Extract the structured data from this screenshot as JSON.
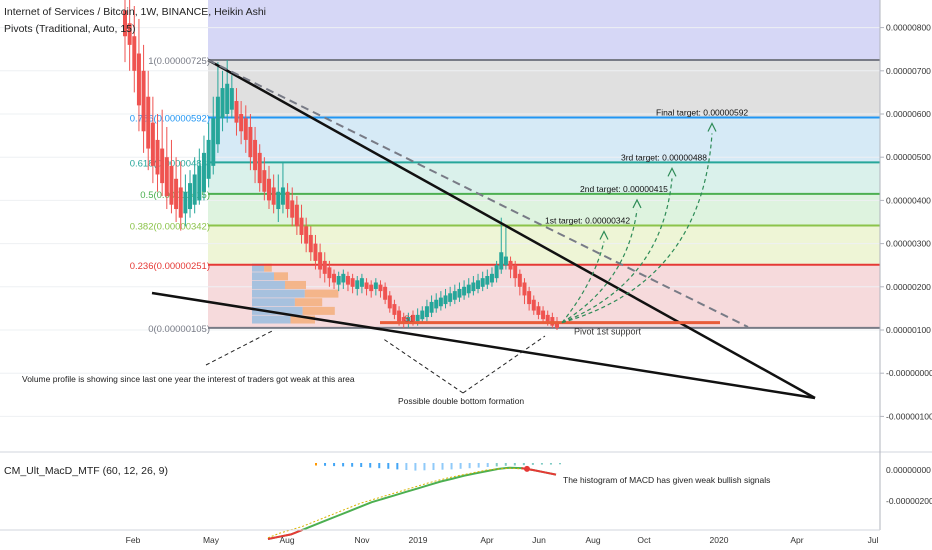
{
  "header": {
    "title": "Internet of Services / Bitcoin, 1W, BINANCE, Heikin Ashi",
    "pivots": "Pivots (Traditional, Auto, 15)",
    "macd": "CM_Ult_MacD_MTF (60, 12, 26, 9)"
  },
  "chart_data": {
    "type": "candlestick",
    "price_axis": {
      "ticks": [
        "0.00000800",
        "0.00000700",
        "0.00000600",
        "0.00000500",
        "0.00000400",
        "0.00000300",
        "0.00000200",
        "0.00000100",
        "-0.00000000",
        "-0.00000100"
      ],
      "range": [
        -1.5e-06,
        8.5e-06
      ]
    },
    "macd_axis": {
      "ticks": [
        "0.00000000",
        "-0.00000200"
      ]
    },
    "time_axis": {
      "ticks": [
        "Feb",
        "May",
        "Aug",
        "Nov",
        "2019",
        "Apr",
        "Jun",
        "Aug",
        "Oct",
        "2020",
        "Apr",
        "Jul"
      ]
    },
    "fib_levels": [
      {
        "label": "1(0.00000725)",
        "value": 7.25e-06,
        "color": "#787b86"
      },
      {
        "label": "0.786(0.00000592)",
        "value": 5.92e-06,
        "color": "#2196f3"
      },
      {
        "label": "0.618(0.00000488)",
        "value": 4.88e-06,
        "color": "#26a69a"
      },
      {
        "label": "0.5(0.00000415)",
        "value": 4.15e-06,
        "color": "#4caf50"
      },
      {
        "label": "0.382(0.00000342)",
        "value": 3.42e-06,
        "color": "#8bc34a"
      },
      {
        "label": "0.236(0.00000251)",
        "value": 2.51e-06,
        "color": "#e53935"
      },
      {
        "label": "0(0.00000105)",
        "value": 1.05e-06,
        "color": "#787b86"
      }
    ],
    "targets": [
      {
        "label": "1st target: 0.00000342",
        "value": 3.42e-06
      },
      {
        "label": "2nd target: 0.00000415",
        "value": 4.15e-06
      },
      {
        "label": "3rd target: 0.00000488",
        "value": 4.88e-06
      },
      {
        "label": "Final target: 0.00000592",
        "value": 5.92e-06
      }
    ],
    "support": {
      "label": "Pivot 1st support",
      "marker": "S1"
    },
    "annotations": [
      "Volume profile is showing since last one year the interest of traders got weak at this area",
      "Possible double bottom formation",
      "The histogram of MACD has given weak bullish signals"
    ],
    "candles": [
      {
        "o": 7.8,
        "c": 8.4,
        "h": 9.0,
        "l": 7.2,
        "up": false
      },
      {
        "o": 7.6,
        "c": 8.1,
        "h": 8.8,
        "l": 7.0,
        "up": false
      },
      {
        "o": 7.0,
        "c": 7.8,
        "h": 8.5,
        "l": 6.5,
        "up": false
      },
      {
        "o": 6.2,
        "c": 7.4,
        "h": 8.2,
        "l": 5.6,
        "up": false
      },
      {
        "o": 5.6,
        "c": 7.0,
        "h": 7.6,
        "l": 5.1,
        "up": false
      },
      {
        "o": 5.2,
        "c": 6.4,
        "h": 7.0,
        "l": 4.7,
        "up": false
      },
      {
        "o": 4.8,
        "c": 5.8,
        "h": 6.4,
        "l": 4.4,
        "up": false
      },
      {
        "o": 4.6,
        "c": 5.4,
        "h": 6.0,
        "l": 4.2,
        "up": false
      },
      {
        "o": 4.4,
        "c": 5.2,
        "h": 6.1,
        "l": 4.1,
        "up": false
      },
      {
        "o": 4.1,
        "c": 5.0,
        "h": 5.7,
        "l": 3.8,
        "up": false
      },
      {
        "o": 3.9,
        "c": 4.8,
        "h": 5.4,
        "l": 3.7,
        "up": false
      },
      {
        "o": 3.8,
        "c": 4.5,
        "h": 5.0,
        "l": 3.5,
        "up": false
      },
      {
        "o": 3.6,
        "c": 4.3,
        "h": 4.9,
        "l": 3.3,
        "up": false
      },
      {
        "o": 3.7,
        "c": 4.2,
        "h": 4.6,
        "l": 3.4,
        "up": true
      },
      {
        "o": 3.8,
        "c": 4.4,
        "h": 4.7,
        "l": 3.6,
        "up": true
      },
      {
        "o": 3.9,
        "c": 4.6,
        "h": 5.0,
        "l": 3.7,
        "up": true
      },
      {
        "o": 4.0,
        "c": 4.8,
        "h": 5.2,
        "l": 3.9,
        "up": true
      },
      {
        "o": 4.2,
        "c": 5.1,
        "h": 5.5,
        "l": 4.0,
        "up": true
      },
      {
        "o": 4.5,
        "c": 5.4,
        "h": 5.8,
        "l": 4.3,
        "up": true
      },
      {
        "o": 4.8,
        "c": 5.9,
        "h": 6.4,
        "l": 4.6,
        "up": true
      },
      {
        "o": 5.3,
        "c": 6.4,
        "h": 7.2,
        "l": 5.1,
        "up": true
      },
      {
        "o": 5.9,
        "c": 6.6,
        "h": 7.0,
        "l": 5.6,
        "up": true
      },
      {
        "o": 6.0,
        "c": 6.7,
        "h": 7.25,
        "l": 5.8,
        "up": true
      },
      {
        "o": 6.1,
        "c": 6.6,
        "h": 6.9,
        "l": 5.9,
        "up": true
      },
      {
        "o": 5.8,
        "c": 6.3,
        "h": 6.6,
        "l": 5.5,
        "up": false
      },
      {
        "o": 5.6,
        "c": 6.0,
        "h": 6.3,
        "l": 5.3,
        "up": false
      },
      {
        "o": 5.4,
        "c": 5.9,
        "h": 6.2,
        "l": 5.1,
        "up": false
      },
      {
        "o": 5.0,
        "c": 5.7,
        "h": 6.0,
        "l": 4.7,
        "up": false
      },
      {
        "o": 4.7,
        "c": 5.4,
        "h": 5.7,
        "l": 4.4,
        "up": false
      },
      {
        "o": 4.4,
        "c": 5.1,
        "h": 5.3,
        "l": 4.2,
        "up": false
      },
      {
        "o": 4.2,
        "c": 4.7,
        "h": 5.0,
        "l": 4.0,
        "up": false
      },
      {
        "o": 4.0,
        "c": 4.5,
        "h": 4.8,
        "l": 3.8,
        "up": false
      },
      {
        "o": 3.9,
        "c": 4.3,
        "h": 4.6,
        "l": 3.7,
        "up": false
      },
      {
        "o": 3.8,
        "c": 4.2,
        "h": 4.6,
        "l": 3.5,
        "up": true
      },
      {
        "o": 3.9,
        "c": 4.3,
        "h": 4.9,
        "l": 3.7,
        "up": true
      },
      {
        "o": 3.8,
        "c": 4.2,
        "h": 4.4,
        "l": 3.6,
        "up": false
      },
      {
        "o": 3.6,
        "c": 4.0,
        "h": 4.3,
        "l": 3.4,
        "up": false
      },
      {
        "o": 3.4,
        "c": 3.9,
        "h": 4.1,
        "l": 3.2,
        "up": false
      },
      {
        "o": 3.2,
        "c": 3.6,
        "h": 3.9,
        "l": 3.0,
        "up": false
      },
      {
        "o": 3.0,
        "c": 3.4,
        "h": 3.6,
        "l": 2.8,
        "up": false
      },
      {
        "o": 2.8,
        "c": 3.2,
        "h": 3.4,
        "l": 2.6,
        "up": false
      },
      {
        "o": 2.6,
        "c": 3.0,
        "h": 3.2,
        "l": 2.4,
        "up": false
      },
      {
        "o": 2.4,
        "c": 2.8,
        "h": 3.0,
        "l": 2.2,
        "up": false
      },
      {
        "o": 2.3,
        "c": 2.6,
        "h": 2.8,
        "l": 2.1,
        "up": false
      },
      {
        "o": 2.2,
        "c": 2.45,
        "h": 2.6,
        "l": 2.0,
        "up": false
      },
      {
        "o": 2.1,
        "c": 2.3,
        "h": 2.4,
        "l": 1.95,
        "up": false
      },
      {
        "o": 2.05,
        "c": 2.25,
        "h": 2.35,
        "l": 1.9,
        "up": true
      },
      {
        "o": 2.1,
        "c": 2.3,
        "h": 2.4,
        "l": 1.95,
        "up": true
      },
      {
        "o": 2.05,
        "c": 2.25,
        "h": 2.35,
        "l": 1.9,
        "up": false
      },
      {
        "o": 2.0,
        "c": 2.2,
        "h": 2.3,
        "l": 1.85,
        "up": false
      },
      {
        "o": 1.95,
        "c": 2.15,
        "h": 2.25,
        "l": 1.8,
        "up": true
      },
      {
        "o": 2.0,
        "c": 2.2,
        "h": 2.3,
        "l": 1.85,
        "up": true
      },
      {
        "o": 1.95,
        "c": 2.1,
        "h": 2.2,
        "l": 1.8,
        "up": false
      },
      {
        "o": 1.9,
        "c": 2.05,
        "h": 2.15,
        "l": 1.75,
        "up": false
      },
      {
        "o": 1.95,
        "c": 2.1,
        "h": 2.2,
        "l": 1.8,
        "up": true
      },
      {
        "o": 1.9,
        "c": 2.05,
        "h": 2.15,
        "l": 1.75,
        "up": false
      },
      {
        "o": 1.7,
        "c": 2.0,
        "h": 2.1,
        "l": 1.6,
        "up": false
      },
      {
        "o": 1.5,
        "c": 1.8,
        "h": 1.9,
        "l": 1.4,
        "up": false
      },
      {
        "o": 1.35,
        "c": 1.6,
        "h": 1.7,
        "l": 1.25,
        "up": false
      },
      {
        "o": 1.2,
        "c": 1.45,
        "h": 1.55,
        "l": 1.1,
        "up": false
      },
      {
        "o": 1.15,
        "c": 1.3,
        "h": 1.4,
        "l": 1.05,
        "up": false
      },
      {
        "o": 1.15,
        "c": 1.3,
        "h": 1.4,
        "l": 1.05,
        "up": true
      },
      {
        "o": 1.2,
        "c": 1.35,
        "h": 1.45,
        "l": 1.1,
        "up": false
      },
      {
        "o": 1.2,
        "c": 1.35,
        "h": 1.5,
        "l": 1.1,
        "up": true
      },
      {
        "o": 1.25,
        "c": 1.45,
        "h": 1.55,
        "l": 1.15,
        "up": true
      },
      {
        "o": 1.3,
        "c": 1.55,
        "h": 1.7,
        "l": 1.2,
        "up": true
      },
      {
        "o": 1.4,
        "c": 1.65,
        "h": 1.8,
        "l": 1.3,
        "up": true
      },
      {
        "o": 1.5,
        "c": 1.7,
        "h": 1.85,
        "l": 1.4,
        "up": true
      },
      {
        "o": 1.55,
        "c": 1.75,
        "h": 1.9,
        "l": 1.45,
        "up": true
      },
      {
        "o": 1.6,
        "c": 1.8,
        "h": 1.95,
        "l": 1.5,
        "up": true
      },
      {
        "o": 1.65,
        "c": 1.85,
        "h": 2.0,
        "l": 1.55,
        "up": true
      },
      {
        "o": 1.7,
        "c": 1.9,
        "h": 2.05,
        "l": 1.6,
        "up": true
      },
      {
        "o": 1.75,
        "c": 1.95,
        "h": 2.1,
        "l": 1.65,
        "up": true
      },
      {
        "o": 1.8,
        "c": 2.0,
        "h": 2.15,
        "l": 1.7,
        "up": true
      },
      {
        "o": 1.85,
        "c": 2.05,
        "h": 2.2,
        "l": 1.75,
        "up": true
      },
      {
        "o": 1.9,
        "c": 2.1,
        "h": 2.25,
        "l": 1.8,
        "up": true
      },
      {
        "o": 1.95,
        "c": 2.15,
        "h": 2.3,
        "l": 1.85,
        "up": true
      },
      {
        "o": 2.0,
        "c": 2.2,
        "h": 2.35,
        "l": 1.9,
        "up": true
      },
      {
        "o": 2.05,
        "c": 2.25,
        "h": 2.4,
        "l": 1.95,
        "up": true
      },
      {
        "o": 2.1,
        "c": 2.3,
        "h": 2.45,
        "l": 2.0,
        "up": true
      },
      {
        "o": 2.2,
        "c": 2.5,
        "h": 2.6,
        "l": 2.1,
        "up": true
      },
      {
        "o": 2.4,
        "c": 2.8,
        "h": 3.6,
        "l": 2.3,
        "up": true
      },
      {
        "o": 2.5,
        "c": 2.7,
        "h": 3.4,
        "l": 2.4,
        "up": true
      },
      {
        "o": 2.4,
        "c": 2.6,
        "h": 2.7,
        "l": 2.2,
        "up": false
      },
      {
        "o": 2.2,
        "c": 2.5,
        "h": 2.6,
        "l": 2.0,
        "up": false
      },
      {
        "o": 2.0,
        "c": 2.3,
        "h": 2.4,
        "l": 1.8,
        "up": false
      },
      {
        "o": 1.8,
        "c": 2.1,
        "h": 2.2,
        "l": 1.6,
        "up": false
      },
      {
        "o": 1.6,
        "c": 1.9,
        "h": 2.0,
        "l": 1.45,
        "up": false
      },
      {
        "o": 1.45,
        "c": 1.7,
        "h": 1.8,
        "l": 1.35,
        "up": false
      },
      {
        "o": 1.35,
        "c": 1.55,
        "h": 1.65,
        "l": 1.25,
        "up": false
      },
      {
        "o": 1.25,
        "c": 1.45,
        "h": 1.55,
        "l": 1.15,
        "up": false
      },
      {
        "o": 1.2,
        "c": 1.35,
        "h": 1.45,
        "l": 1.1,
        "up": false
      },
      {
        "o": 1.1,
        "c": 1.3,
        "h": 1.4,
        "l": 1.05,
        "up": false
      },
      {
        "o": 1.05,
        "c": 1.2,
        "h": 1.3,
        "l": 1.0,
        "up": false
      }
    ],
    "macd_line": [
      [
        -3.0,
        -2.95
      ],
      [
        -2.9,
        -2.75
      ],
      [
        -2.8,
        -2.6
      ],
      [
        -2.6,
        -2.45
      ],
      [
        -2.4,
        -2.25
      ],
      [
        -2.2,
        -2.05
      ],
      [
        -2.0,
        -1.85
      ],
      [
        -1.8,
        -1.65
      ],
      [
        -1.6,
        -1.45
      ],
      [
        -1.4,
        -1.3
      ],
      [
        -1.25,
        -1.15
      ],
      [
        -1.1,
        -1.0
      ],
      [
        -0.95,
        -0.85
      ],
      [
        -0.8,
        -0.7
      ],
      [
        -0.65,
        -0.55
      ],
      [
        -0.5,
        -0.42
      ],
      [
        -0.38,
        -0.3
      ],
      [
        -0.25,
        -0.2
      ],
      [
        -0.15,
        -0.1
      ],
      [
        -0.05,
        0.0
      ],
      [
        0.05,
        0.05
      ],
      [
        0.1,
        0.08
      ],
      [
        0.08,
        0.05
      ],
      [
        0.0,
        0.0
      ],
      [
        -0.1,
        -0.1
      ],
      [
        -0.2,
        -0.2
      ]
    ],
    "macd_hist": [
      -0.05,
      -0.06,
      -0.07,
      -0.08,
      -0.09,
      -0.1,
      -0.12,
      -0.14,
      -0.16,
      -0.18,
      -0.2,
      -0.22,
      -0.21,
      -0.2,
      -0.19,
      -0.18,
      -0.16,
      -0.14,
      -0.12,
      -0.1,
      -0.08,
      -0.06,
      -0.05,
      -0.04,
      -0.03,
      -0.02,
      -0.02,
      -0.01
    ]
  }
}
